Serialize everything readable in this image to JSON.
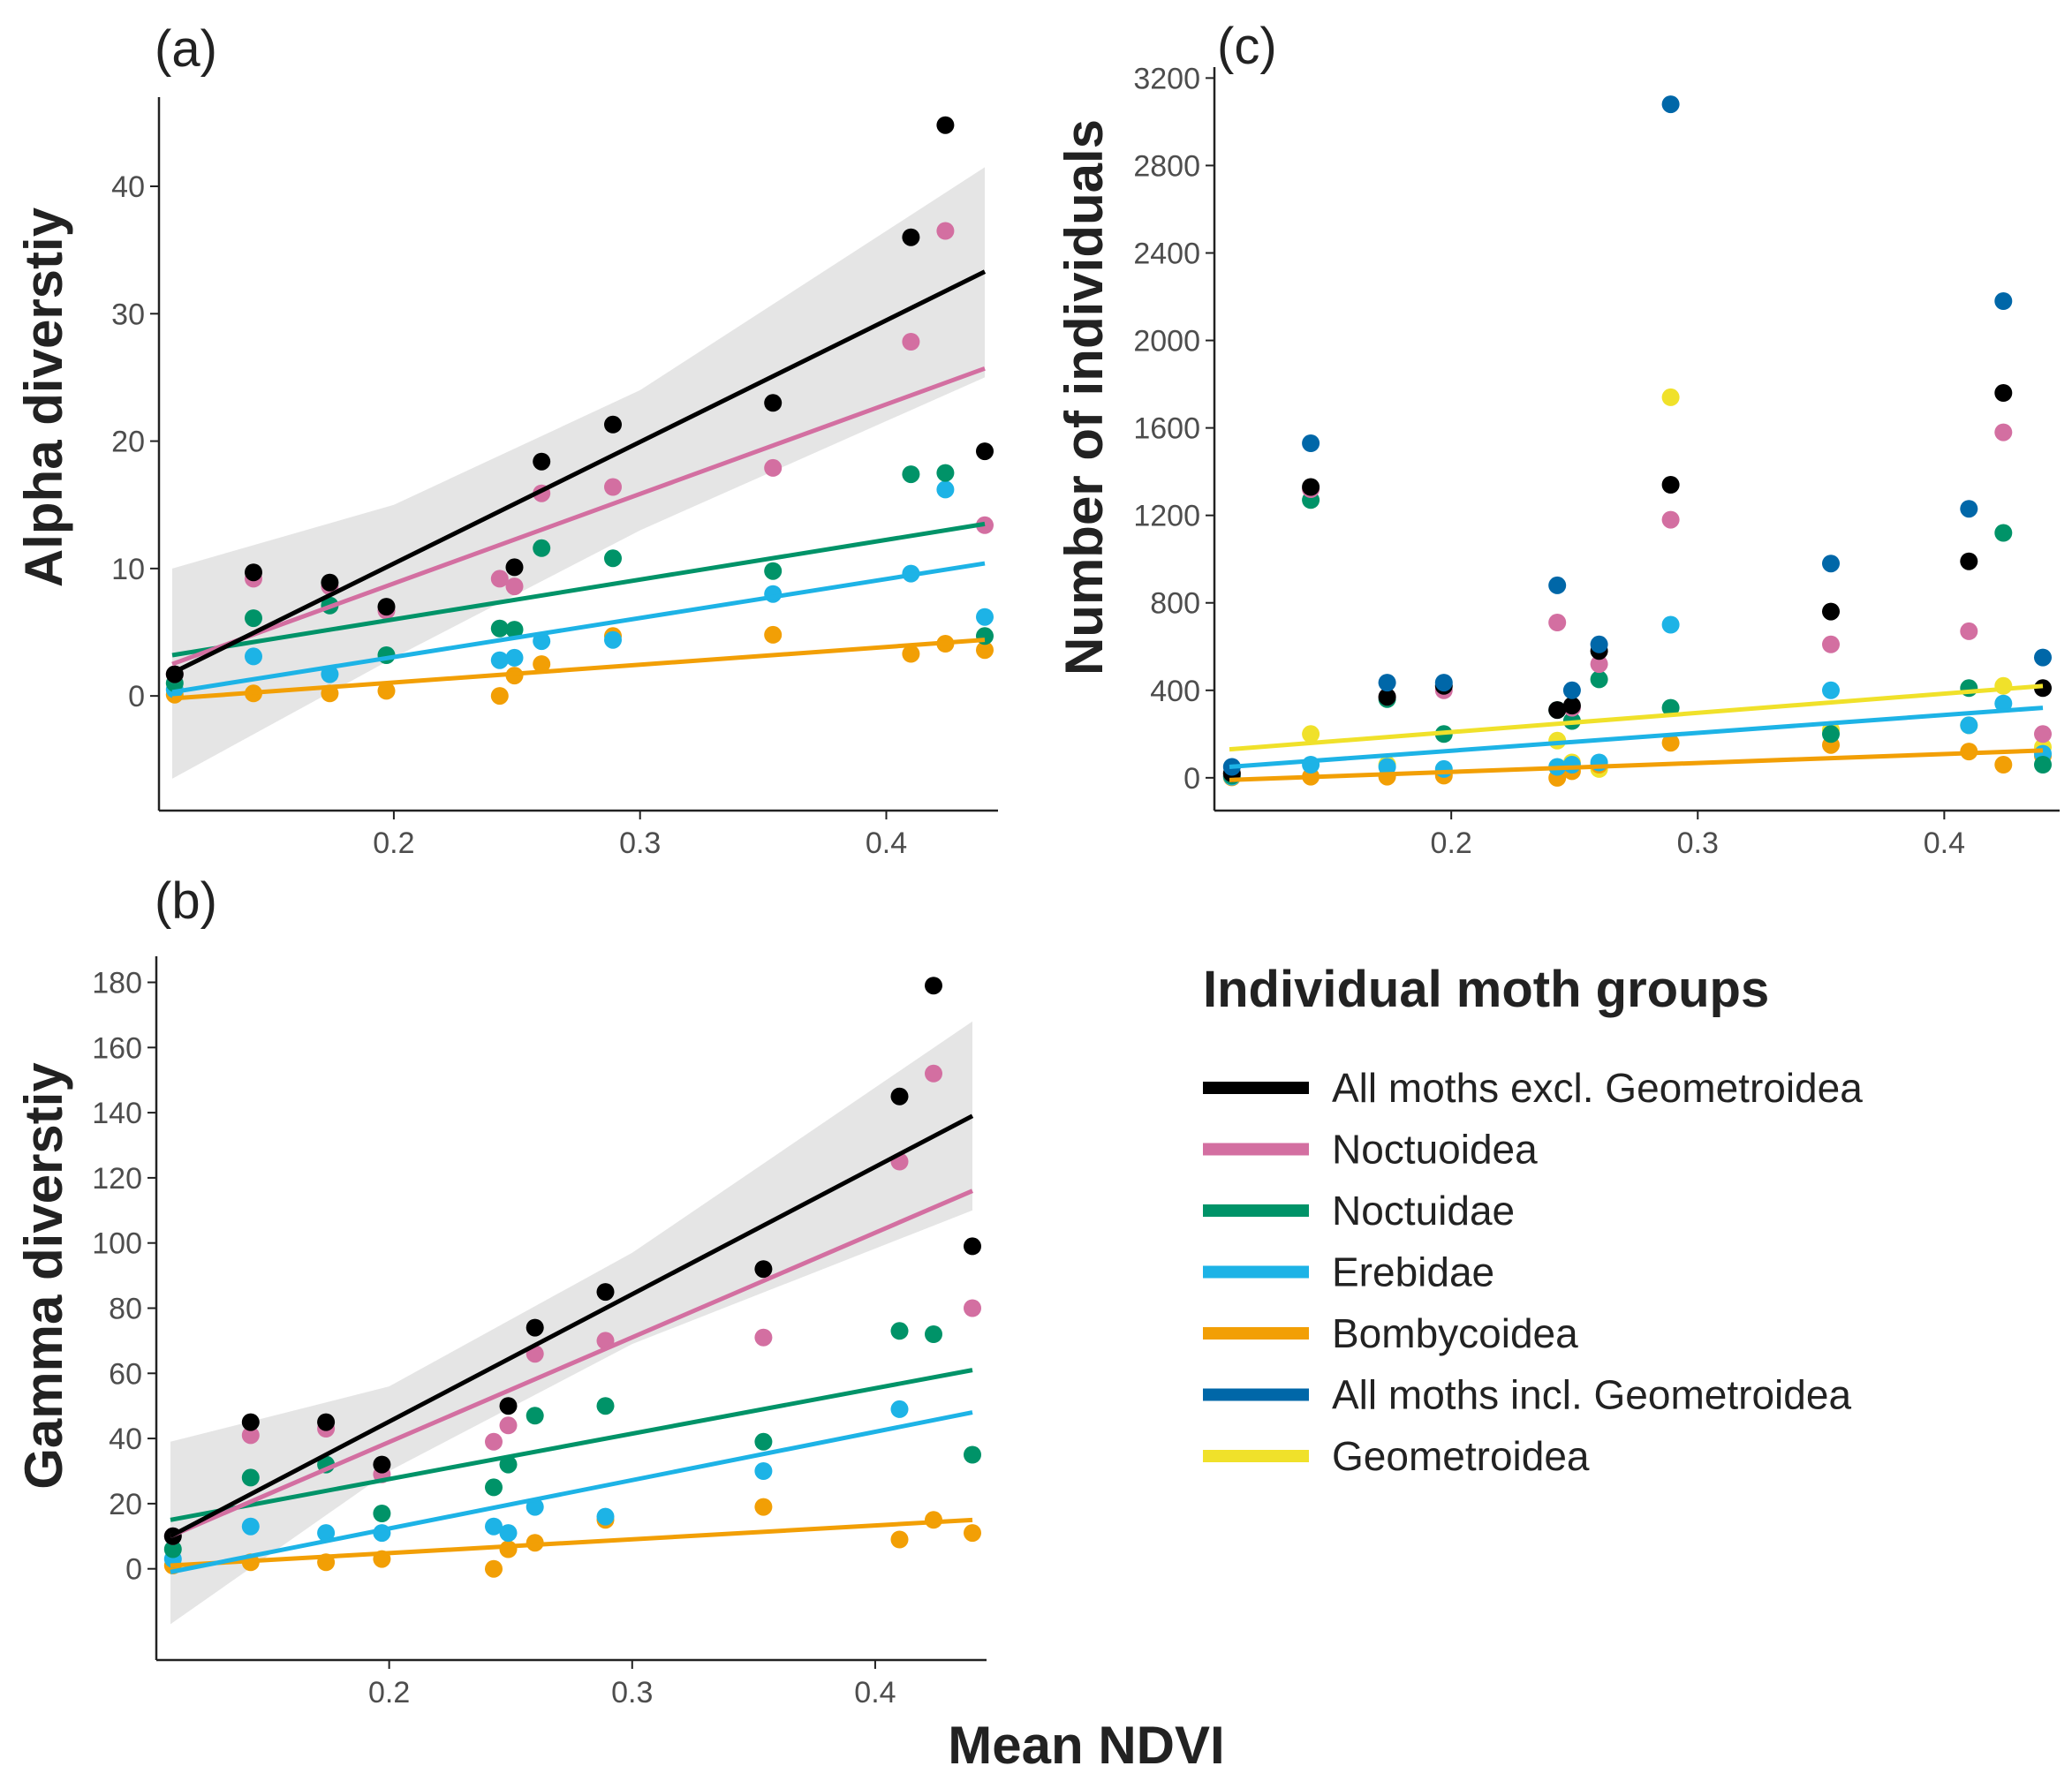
{
  "figure": {
    "xlabel": "Mean NDVI"
  },
  "legend": {
    "title": "Individual moth groups",
    "items": [
      {
        "key": "all_excl",
        "label": "All moths excl. Geometroidea",
        "color": "#000000"
      },
      {
        "key": "noctuoidea",
        "label": "Noctuoidea",
        "color": "#D36FA1"
      },
      {
        "key": "noctuidae",
        "label": "Noctuidae",
        "color": "#009368"
      },
      {
        "key": "erebidae",
        "label": "Erebidae",
        "color": "#1DB3E6"
      },
      {
        "key": "bombycoidea",
        "label": "Bombycoidea",
        "color": "#F29F05"
      },
      {
        "key": "all_incl",
        "label": "All moths incl. Geometroidea",
        "color": "#0067A8"
      },
      {
        "key": "geometroidea",
        "label": "Geometroidea",
        "color": "#F0E12A"
      }
    ]
  },
  "chart_data": [
    {
      "id": "a",
      "panel_label": "(a)",
      "type": "scatter",
      "xlabel": "",
      "ylabel": "Alpha diverstiy",
      "xlim": [
        0.11,
        0.44
      ],
      "ylim": [
        -9,
        47
      ],
      "xticks": [
        0.2,
        0.3,
        0.4
      ],
      "xtick_labels": [
        "0.2",
        "0.3",
        "0.4"
      ],
      "yticks": [
        0,
        10,
        20,
        30,
        40
      ],
      "ytick_labels": [
        "0",
        "10",
        "20",
        "30",
        "40"
      ],
      "confidence_band": {
        "series": "all_excl",
        "x": [
          0.11,
          0.2,
          0.3,
          0.44
        ],
        "lower": [
          -6.5,
          3.0,
          13.0,
          25.0
        ],
        "upper": [
          10.0,
          15.0,
          24.0,
          41.5
        ]
      },
      "series": [
        {
          "key": "all_excl",
          "name": "All moths excl. Geometroidea",
          "color": "#000000",
          "x": [
            0.111,
            0.143,
            0.174,
            0.197,
            0.249,
            0.26,
            0.289,
            0.354,
            0.41,
            0.424,
            0.44
          ],
          "y": [
            1.7,
            9.7,
            8.9,
            7.0,
            10.1,
            18.4,
            21.3,
            23.0,
            36.0,
            44.8,
            19.2
          ],
          "fit": [
            [
              0.11,
              1.8
            ],
            [
              0.44,
              33.3
            ]
          ]
        },
        {
          "key": "noctuoidea",
          "name": "Noctuoidea",
          "color": "#D36FA1",
          "x": [
            0.111,
            0.143,
            0.174,
            0.197,
            0.243,
            0.249,
            0.26,
            0.289,
            0.354,
            0.41,
            0.424,
            0.44
          ],
          "y": [
            1.7,
            9.2,
            8.6,
            6.7,
            9.2,
            8.6,
            15.9,
            16.4,
            17.9,
            27.8,
            36.5,
            13.4
          ],
          "fit": [
            [
              0.11,
              2.5
            ],
            [
              0.44,
              25.7
            ]
          ]
        },
        {
          "key": "noctuidae",
          "name": "Noctuidae",
          "color": "#009368",
          "x": [
            0.111,
            0.143,
            0.174,
            0.197,
            0.243,
            0.249,
            0.26,
            0.289,
            0.354,
            0.41,
            0.424,
            0.44
          ],
          "y": [
            1.0,
            6.1,
            7.1,
            3.2,
            5.3,
            5.2,
            11.6,
            10.8,
            9.8,
            17.4,
            17.5,
            4.7
          ],
          "fit": [
            [
              0.11,
              3.2
            ],
            [
              0.44,
              13.5
            ]
          ]
        },
        {
          "key": "erebidae",
          "name": "Erebidae",
          "color": "#1DB3E6",
          "x": [
            0.111,
            0.143,
            0.174,
            0.243,
            0.249,
            0.26,
            0.289,
            0.354,
            0.41,
            0.424,
            0.44
          ],
          "y": [
            0.5,
            3.1,
            1.7,
            2.8,
            3.0,
            4.3,
            4.4,
            8.0,
            9.6,
            16.2,
            6.2
          ],
          "fit": [
            [
              0.11,
              0.3
            ],
            [
              0.44,
              10.4
            ]
          ]
        },
        {
          "key": "bombycoidea",
          "name": "Bombycoidea",
          "color": "#F29F05",
          "x": [
            0.111,
            0.143,
            0.174,
            0.197,
            0.243,
            0.249,
            0.26,
            0.289,
            0.354,
            0.41,
            0.424,
            0.44
          ],
          "y": [
            0.1,
            0.2,
            0.2,
            0.4,
            0.0,
            1.6,
            2.5,
            4.7,
            4.8,
            3.3,
            4.1,
            3.6
          ],
          "fit": [
            [
              0.11,
              -0.2
            ],
            [
              0.44,
              4.4
            ]
          ]
        }
      ]
    },
    {
      "id": "b",
      "panel_label": "(b)",
      "type": "scatter",
      "xlabel": "Mean NDVI",
      "ylabel": "Gamma diverstiy",
      "xlim": [
        0.11,
        0.44
      ],
      "ylim": [
        -28,
        188
      ],
      "xticks": [
        0.2,
        0.3,
        0.4
      ],
      "xtick_labels": [
        "0.2",
        "0.3",
        "0.4"
      ],
      "yticks": [
        0,
        20,
        40,
        60,
        80,
        100,
        120,
        140,
        160,
        180
      ],
      "ytick_labels": [
        "0",
        "20",
        "40",
        "60",
        "80",
        "100",
        "120",
        "140",
        "160",
        "180"
      ],
      "confidence_band": {
        "series": "all_excl",
        "x": [
          0.11,
          0.2,
          0.3,
          0.44
        ],
        "lower": [
          -17,
          30,
          69,
          110
        ],
        "upper": [
          39,
          56,
          97,
          168
        ]
      },
      "series": [
        {
          "key": "all_excl",
          "name": "All moths excl. Geometroidea",
          "color": "#000000",
          "x": [
            0.111,
            0.143,
            0.174,
            0.197,
            0.249,
            0.26,
            0.289,
            0.354,
            0.41,
            0.424,
            0.44
          ],
          "y": [
            10,
            45,
            45,
            32,
            50,
            74,
            85,
            92,
            145,
            179,
            99
          ],
          "fit": [
            [
              0.11,
              10
            ],
            [
              0.44,
              139
            ]
          ]
        },
        {
          "key": "noctuoidea",
          "name": "Noctuoidea",
          "color": "#D36FA1",
          "x": [
            0.111,
            0.143,
            0.174,
            0.197,
            0.243,
            0.249,
            0.26,
            0.289,
            0.354,
            0.41,
            0.424,
            0.44
          ],
          "y": [
            10,
            41,
            43,
            29,
            39,
            44,
            66,
            70,
            71,
            125,
            152,
            80
          ],
          "fit": [
            [
              0.11,
              10
            ],
            [
              0.44,
              116
            ]
          ]
        },
        {
          "key": "noctuidae",
          "name": "Noctuidae",
          "color": "#009368",
          "x": [
            0.111,
            0.143,
            0.174,
            0.197,
            0.243,
            0.249,
            0.26,
            0.289,
            0.354,
            0.41,
            0.424,
            0.44
          ],
          "y": [
            6,
            28,
            32,
            17,
            25,
            32,
            47,
            50,
            39,
            73,
            72,
            35
          ],
          "fit": [
            [
              0.11,
              15
            ],
            [
              0.44,
              61
            ]
          ]
        },
        {
          "key": "erebidae",
          "name": "Erebidae",
          "color": "#1DB3E6",
          "x": [
            0.111,
            0.143,
            0.174,
            0.197,
            0.243,
            0.249,
            0.26,
            0.289,
            0.354,
            0.41
          ],
          "y": [
            3,
            13,
            11,
            11,
            13,
            11,
            19,
            16,
            30,
            49
          ],
          "fit": [
            [
              0.11,
              -1
            ],
            [
              0.44,
              48
            ]
          ]
        },
        {
          "key": "bombycoidea",
          "name": "Bombycoidea",
          "color": "#F29F05",
          "x": [
            0.111,
            0.143,
            0.174,
            0.197,
            0.243,
            0.249,
            0.26,
            0.289,
            0.354,
            0.41,
            0.424,
            0.44
          ],
          "y": [
            1,
            2,
            2,
            3,
            0,
            6,
            8,
            15,
            19,
            9,
            15,
            11
          ],
          "fit": [
            [
              0.11,
              1
            ],
            [
              0.44,
              15
            ]
          ]
        }
      ]
    },
    {
      "id": "c",
      "panel_label": "(c)",
      "type": "scatter",
      "xlabel": "",
      "ylabel": "Number of individuals",
      "xlim": [
        0.11,
        0.44
      ],
      "ylim": [
        -150,
        3250
      ],
      "xticks": [
        0.2,
        0.3,
        0.4
      ],
      "xtick_labels": [
        "0.2",
        "0.3",
        "0.4"
      ],
      "yticks": [
        0,
        400,
        800,
        1200,
        1600,
        2000,
        2400,
        2800,
        3200
      ],
      "ytick_labels": [
        "0",
        "400",
        "800",
        "1200",
        "1600",
        "2000",
        "2400",
        "2800",
        "3200"
      ],
      "series": [
        {
          "key": "all_incl",
          "name": "All moths incl. Geometroidea",
          "color": "#0067A8",
          "x": [
            0.111,
            0.143,
            0.174,
            0.197,
            0.243,
            0.249,
            0.26,
            0.289,
            0.354,
            0.41,
            0.424,
            0.44
          ],
          "y": [
            50,
            1530,
            435,
            435,
            880,
            400,
            610,
            3080,
            980,
            1230,
            2180,
            550
          ],
          "fit": null
        },
        {
          "key": "all_excl",
          "name": "All moths excl. Geometroidea",
          "color": "#000000",
          "x": [
            0.111,
            0.143,
            0.174,
            0.197,
            0.243,
            0.249,
            0.26,
            0.289,
            0.354,
            0.41,
            0.424,
            0.44
          ],
          "y": [
            20,
            1330,
            370,
            420,
            310,
            330,
            580,
            1340,
            760,
            990,
            1760,
            410
          ],
          "fit": null
        },
        {
          "key": "noctuoidea",
          "name": "Noctuoidea",
          "color": "#D36FA1",
          "x": [
            0.111,
            0.143,
            0.174,
            0.197,
            0.243,
            0.249,
            0.26,
            0.289,
            0.354,
            0.41,
            0.424,
            0.44
          ],
          "y": [
            20,
            1320,
            370,
            400,
            710,
            320,
            520,
            1180,
            610,
            670,
            1580,
            200
          ],
          "fit": null
        },
        {
          "key": "noctuidae",
          "name": "Noctuidae",
          "color": "#009368",
          "x": [
            0.111,
            0.143,
            0.174,
            0.197,
            0.243,
            0.249,
            0.26,
            0.289,
            0.354,
            0.41,
            0.424,
            0.44
          ],
          "y": [
            10,
            1270,
            360,
            200,
            310,
            260,
            450,
            320,
            200,
            410,
            1120,
            60
          ],
          "fit": null
        },
        {
          "key": "erebidae",
          "name": "Erebidae",
          "color": "#1DB3E6",
          "x": [
            0.111,
            0.143,
            0.174,
            0.197,
            0.243,
            0.249,
            0.26,
            0.289,
            0.354,
            0.41,
            0.424,
            0.44
          ],
          "y": [
            5,
            60,
            50,
            40,
            50,
            60,
            70,
            700,
            400,
            240,
            340,
            110
          ],
          "fit": [
            [
              0.11,
              50
            ],
            [
              0.44,
              320
            ]
          ]
        },
        {
          "key": "bombycoidea",
          "name": "Bombycoidea",
          "color": "#F29F05",
          "x": [
            0.111,
            0.143,
            0.174,
            0.197,
            0.243,
            0.249,
            0.26,
            0.289,
            0.354,
            0.41,
            0.424,
            0.44
          ],
          "y": [
            2,
            5,
            5,
            10,
            0,
            30,
            60,
            160,
            150,
            120,
            60,
            100
          ],
          "fit": [
            [
              0.11,
              -10
            ],
            [
              0.44,
              125
            ]
          ]
        },
        {
          "key": "geometroidea",
          "name": "Geometroidea",
          "color": "#F0E12A",
          "x": [
            0.111,
            0.143,
            0.174,
            0.197,
            0.243,
            0.249,
            0.26,
            0.289,
            0.354,
            0.41,
            0.424,
            0.44
          ],
          "y": [
            20,
            200,
            60,
            20,
            170,
            70,
            40,
            1740,
            220,
            240,
            420,
            140
          ],
          "fit": [
            [
              0.11,
              130
            ],
            [
              0.44,
              420
            ]
          ]
        }
      ]
    }
  ]
}
